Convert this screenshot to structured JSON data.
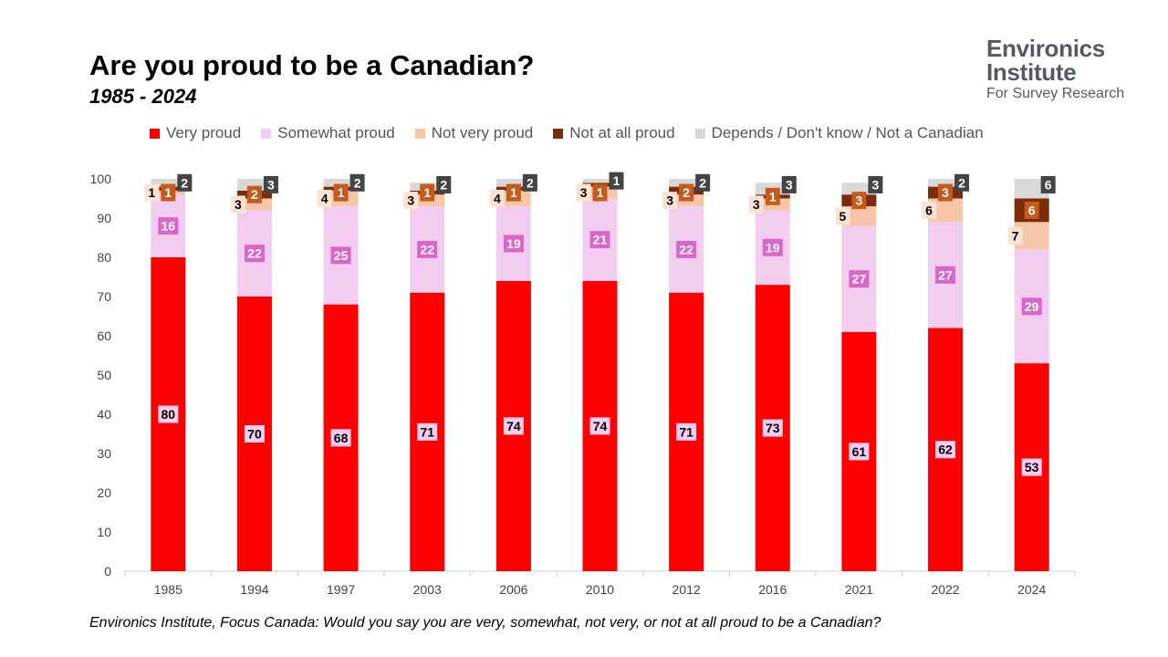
{
  "title": "Are you proud to be a Canadian?",
  "subtitle": "1985 - 2024",
  "source": "Environics Institute, Focus Canada: Would you say you are very, somewhat, not very, or not at all proud to be a Canadian?",
  "logo": {
    "line1": "Environics",
    "line2": "Institute",
    "line3": "For Survey Research"
  },
  "colors": {
    "very": "#fe0000",
    "somewhat": "#f2cdf0",
    "notvery": "#f7c6a8",
    "notatall": "#7b2c0c",
    "depends": "#d9d9d9"
  },
  "chart_data": {
    "type": "bar",
    "stacked": true,
    "categories": [
      "1985",
      "1994",
      "1997",
      "2003",
      "2006",
      "2010",
      "2012",
      "2016",
      "2021",
      "2022",
      "2024"
    ],
    "series": [
      {
        "name": "Very proud",
        "values": [
          80,
          70,
          68,
          71,
          74,
          74,
          71,
          73,
          61,
          62,
          53
        ]
      },
      {
        "name": "Somewhat proud",
        "values": [
          16,
          22,
          25,
          22,
          19,
          21,
          22,
          19,
          27,
          27,
          29
        ]
      },
      {
        "name": "Not very proud",
        "values": [
          1,
          3,
          4,
          3,
          4,
          3,
          3,
          3,
          5,
          6,
          7
        ]
      },
      {
        "name": "Not at all proud",
        "values": [
          1,
          2,
          1,
          1,
          1,
          1,
          2,
          1,
          3,
          3,
          6
        ]
      },
      {
        "name": "Depends / Don't know / Not a Canadian",
        "values": [
          2,
          3,
          2,
          2,
          2,
          1,
          2,
          3,
          3,
          2,
          6
        ]
      }
    ],
    "ylim": [
      0,
      100
    ],
    "yticks": [
      0,
      10,
      20,
      30,
      40,
      50,
      60,
      70,
      80,
      90,
      100
    ],
    "legend_position": "top",
    "grid": false
  }
}
